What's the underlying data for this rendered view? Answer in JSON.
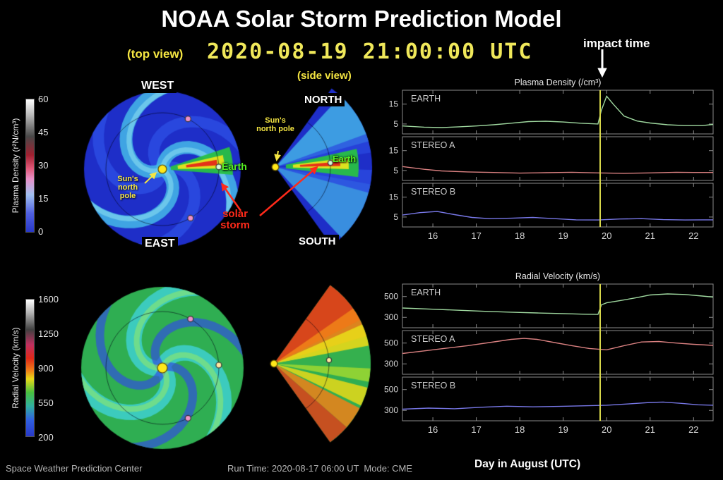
{
  "title": "NOAA Solar Storm Prediction Model",
  "header": {
    "datetime": "2020-08-19 21:00:00 UTC",
    "impact_label": "impact time",
    "top_view_label": "(top view)",
    "side_view_label": "(side view)"
  },
  "compass": {
    "west": "WEST",
    "east": "EAST",
    "north": "NORTH",
    "south": "SOUTH"
  },
  "annotations": {
    "sun_north_pole": "Sun's north pole",
    "earth": "Earth",
    "solar_storm": "solar storm"
  },
  "colorbars": {
    "density": {
      "label": "Plasma Density (r²N/cm³)",
      "ticks": [
        "60",
        "45",
        "30",
        "15",
        "0"
      ]
    },
    "velocity": {
      "label": "Radial Velocity (km/s)",
      "ticks": [
        "1600",
        "1250",
        "900",
        "550",
        "200"
      ]
    }
  },
  "footer": {
    "center_name": "Space Weather Prediction Center",
    "run_time": "Run Time: 2020-08-17 06:00 UT  Mode: CME",
    "x_axis_label": "Day in August (UTC)"
  },
  "colors": {
    "accent_yellow": "#f5e642",
    "storm_red": "#ff2a1a",
    "earth_green": "#55ee22",
    "impact_line": "#d6d64a",
    "earth_series": "#9fd89f",
    "stereo_a_series": "#d98080",
    "stereo_b_series": "#7878e8"
  },
  "chart_data": [
    {
      "type": "line",
      "title": "Plasma Density (/cm³)",
      "xlabel": "Day in August (UTC)",
      "xlim": [
        15.3,
        22.45
      ],
      "xticks": [
        16,
        17,
        18,
        19,
        20,
        21,
        22
      ],
      "impact_x": 19.85,
      "legend_position": "inside-top-left",
      "grid": false,
      "panels": [
        {
          "name": "EARTH",
          "color": "#9fd89f",
          "ylim": [
            0,
            22
          ],
          "yticks": [
            5,
            15
          ],
          "x": [
            15.3,
            15.8,
            16.2,
            16.6,
            17.0,
            17.4,
            17.8,
            18.2,
            18.6,
            19.0,
            19.4,
            19.8,
            19.88,
            20.0,
            20.15,
            20.4,
            20.7,
            21.0,
            21.4,
            21.8,
            22.2,
            22.45
          ],
          "y": [
            4.0,
            3.4,
            3.2,
            3.6,
            4.0,
            4.6,
            5.4,
            6.2,
            6.4,
            6.0,
            5.4,
            5.0,
            12.0,
            19.0,
            15.0,
            9.0,
            6.5,
            5.5,
            4.6,
            4.2,
            4.2,
            4.8
          ]
        },
        {
          "name": "STEREO A",
          "color": "#d98080",
          "ylim": [
            0,
            22
          ],
          "yticks": [
            5,
            15
          ],
          "x": [
            15.3,
            15.8,
            16.2,
            16.8,
            17.4,
            18.0,
            18.6,
            19.2,
            19.8,
            20.4,
            21.0,
            21.6,
            22.0,
            22.45
          ],
          "y": [
            7.0,
            5.6,
            4.8,
            4.3,
            4.0,
            3.7,
            3.9,
            4.1,
            3.8,
            3.6,
            3.8,
            4.1,
            4.0,
            4.0
          ]
        },
        {
          "name": "STEREO B",
          "color": "#7878e8",
          "ylim": [
            0,
            22
          ],
          "yticks": [
            5,
            15
          ],
          "x": [
            15.3,
            15.7,
            16.1,
            16.5,
            16.9,
            17.3,
            17.8,
            18.3,
            18.8,
            19.3,
            19.8,
            20.3,
            20.8,
            21.3,
            21.8,
            22.2,
            22.45
          ],
          "y": [
            6.0,
            7.2,
            7.8,
            6.2,
            4.8,
            4.2,
            4.4,
            4.8,
            4.2,
            3.6,
            3.5,
            4.0,
            4.2,
            3.7,
            3.5,
            3.6,
            3.6
          ]
        }
      ]
    },
    {
      "type": "line",
      "title": "Radial Velocity (km/s)",
      "xlabel": "Day in August (UTC)",
      "xlim": [
        15.3,
        22.45
      ],
      "xticks": [
        16,
        17,
        18,
        19,
        20,
        21,
        22
      ],
      "impact_x": 19.85,
      "legend_position": "inside-top-left",
      "grid": false,
      "panels": [
        {
          "name": "EARTH",
          "color": "#9fd89f",
          "ylim": [
            200,
            620
          ],
          "yticks": [
            300,
            500
          ],
          "x": [
            15.3,
            16.0,
            16.6,
            17.2,
            17.8,
            18.4,
            19.0,
            19.5,
            19.8,
            19.88,
            20.0,
            20.3,
            20.7,
            21.0,
            21.4,
            21.8,
            22.2,
            22.45
          ],
          "y": [
            390,
            378,
            368,
            358,
            350,
            342,
            336,
            330,
            328,
            420,
            440,
            460,
            490,
            515,
            525,
            520,
            505,
            495
          ]
        },
        {
          "name": "STEREO A",
          "color": "#d98080",
          "ylim": [
            200,
            620
          ],
          "yticks": [
            300,
            500
          ],
          "x": [
            15.3,
            15.8,
            16.3,
            16.8,
            17.3,
            17.8,
            18.1,
            18.4,
            18.8,
            19.2,
            19.6,
            20.0,
            20.4,
            20.8,
            21.2,
            21.6,
            22.0,
            22.45
          ],
          "y": [
            400,
            425,
            450,
            475,
            505,
            535,
            545,
            535,
            505,
            475,
            448,
            435,
            475,
            510,
            515,
            500,
            488,
            478
          ]
        },
        {
          "name": "STEREO B",
          "color": "#7878e8",
          "ylim": [
            200,
            620
          ],
          "yticks": [
            300,
            500
          ],
          "x": [
            15.3,
            15.9,
            16.5,
            17.1,
            17.7,
            18.3,
            18.9,
            19.5,
            20.0,
            20.5,
            21.0,
            21.3,
            21.7,
            22.1,
            22.45
          ],
          "y": [
            312,
            322,
            316,
            330,
            340,
            334,
            338,
            344,
            350,
            362,
            376,
            380,
            368,
            354,
            350
          ]
        }
      ]
    }
  ]
}
